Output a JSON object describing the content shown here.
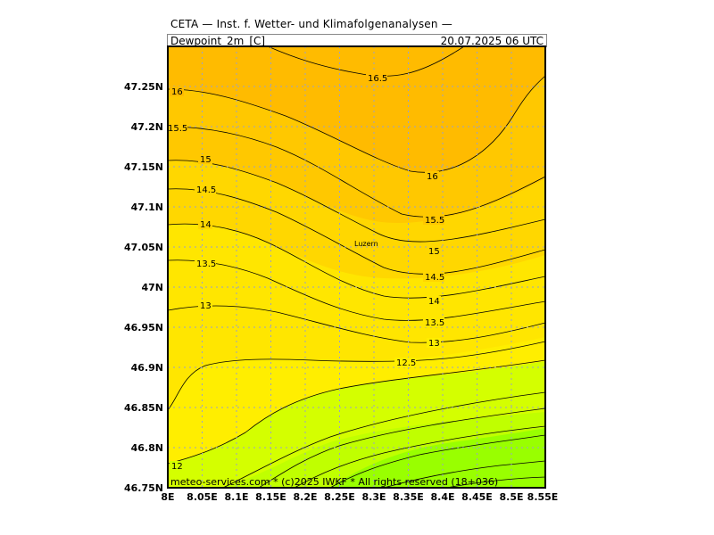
{
  "header": {
    "title": "CETA — Inst. f. Wetter- und Klimafolgenanalysen —",
    "parameter": "Dewpoint_2m_[C]",
    "valid_time": "20.07.2025  06 UTC"
  },
  "credit": "meteo-services.com * (c)2025 IWKF * All rights reserved (18+036)",
  "city": "Luzern",
  "x_ticks": [
    "8E",
    "8.05E",
    "8.1E",
    "8.15E",
    "8.2E",
    "8.25E",
    "8.3E",
    "8.35E",
    "8.4E",
    "8.45E",
    "8.5E",
    "8.55E"
  ],
  "y_ticks": [
    "47.25N",
    "47.2N",
    "47.15N",
    "47.1N",
    "47.05N",
    "47N",
    "46.95N",
    "46.9N",
    "46.85N",
    "46.8N",
    "46.75N"
  ],
  "contour_labels": [
    "16.5",
    "16",
    "15.5",
    "15",
    "14.5",
    "14",
    "13.5",
    "13",
    "12.5",
    "12",
    "16",
    "15.5",
    "15",
    "14.5",
    "14",
    "13.5",
    "13"
  ],
  "colors": {
    "band_12_5": "#ccff00",
    "band_13": "#ffee00",
    "band_14": "#ffd800",
    "band_15": "#ffc800",
    "band_16": "#ffbb00",
    "band_low": "#99ff00",
    "grid": "#9aa0c8",
    "contour": "#000000"
  }
}
